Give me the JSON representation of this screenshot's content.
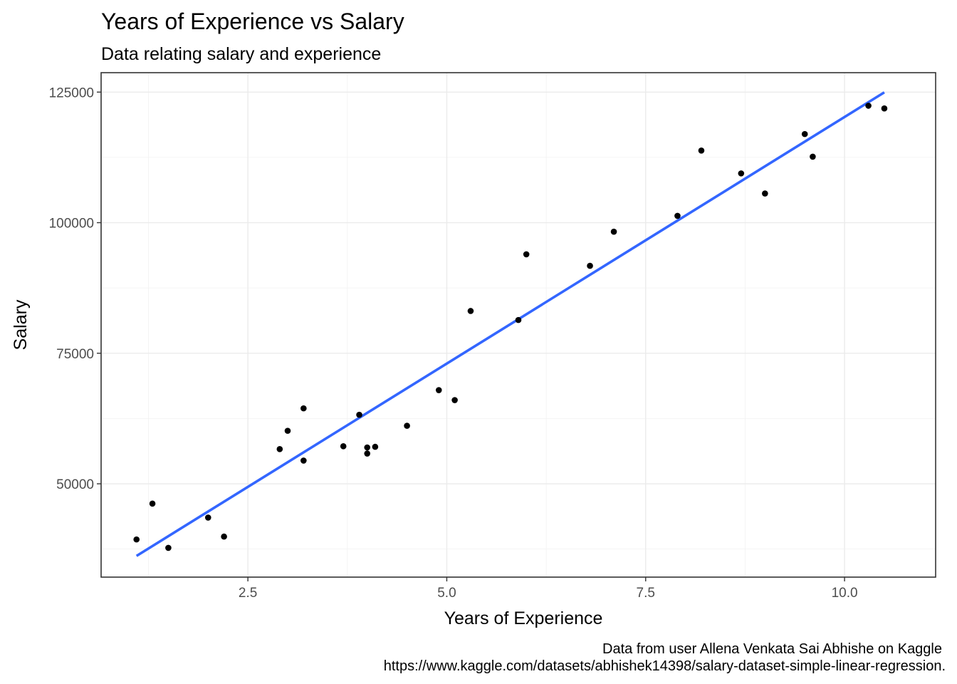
{
  "chart_data": {
    "type": "scatter",
    "title": "Years of Experience vs Salary",
    "subtitle": "Data relating salary and experience",
    "xlabel": "Years of Experience",
    "ylabel": "Salary",
    "caption_lines": [
      "Data from user Allena Venkata Sai Abhishe on Kaggle",
      "https://www.kaggle.com/datasets/abhishek14398/salary-dataset-simple-linear-regression."
    ],
    "xlim": [
      0.655,
      11.145
    ],
    "ylim": [
      32130,
      128720
    ],
    "x_ticks": [
      2.5,
      5.0,
      7.5,
      10.0
    ],
    "x_tick_labels": [
      "2.5",
      "5.0",
      "7.5",
      "10.0"
    ],
    "y_ticks": [
      50000,
      75000,
      100000,
      125000
    ],
    "y_tick_labels": [
      "50000",
      "75000",
      "100000",
      "125000"
    ],
    "x_minor": [
      1.25,
      3.75,
      6.25,
      8.75
    ],
    "y_minor": [
      37500,
      62500,
      87500,
      112500
    ],
    "grid": true,
    "legend": "none",
    "points": [
      {
        "x": 1.1,
        "y": 39343
      },
      {
        "x": 1.3,
        "y": 46205
      },
      {
        "x": 1.5,
        "y": 37731
      },
      {
        "x": 2.0,
        "y": 43525
      },
      {
        "x": 2.2,
        "y": 39891
      },
      {
        "x": 2.9,
        "y": 56642
      },
      {
        "x": 3.0,
        "y": 60150
      },
      {
        "x": 3.2,
        "y": 54445
      },
      {
        "x": 3.2,
        "y": 64445
      },
      {
        "x": 3.7,
        "y": 57189
      },
      {
        "x": 3.9,
        "y": 63218
      },
      {
        "x": 4.0,
        "y": 55794
      },
      {
        "x": 4.0,
        "y": 56957
      },
      {
        "x": 4.1,
        "y": 57081
      },
      {
        "x": 4.5,
        "y": 61111
      },
      {
        "x": 4.9,
        "y": 67938
      },
      {
        "x": 5.1,
        "y": 66029
      },
      {
        "x": 5.3,
        "y": 83088
      },
      {
        "x": 5.9,
        "y": 81363
      },
      {
        "x": 6.0,
        "y": 93940
      },
      {
        "x": 6.8,
        "y": 91738
      },
      {
        "x": 7.1,
        "y": 98273
      },
      {
        "x": 7.9,
        "y": 101302
      },
      {
        "x": 8.2,
        "y": 113812
      },
      {
        "x": 8.7,
        "y": 109431
      },
      {
        "x": 9.0,
        "y": 105582
      },
      {
        "x": 9.5,
        "y": 116969
      },
      {
        "x": 9.6,
        "y": 112635
      },
      {
        "x": 10.3,
        "y": 122391
      },
      {
        "x": 10.5,
        "y": 121872
      }
    ],
    "fit_line": {
      "x": [
        1.1,
        10.5
      ],
      "y": [
        36188,
        124955
      ]
    },
    "colors": {
      "points": "#000000",
      "fit_line": "#3366ff",
      "panel_border": "#333333",
      "grid": "#ebebeb"
    }
  }
}
